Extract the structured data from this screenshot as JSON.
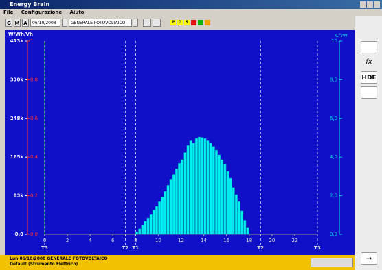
{
  "window": {
    "title": "Energy Brain",
    "menu": [
      "File",
      "Configurazione",
      "Aiuto"
    ],
    "toolbar": {
      "buttons": [
        "G",
        "M",
        "A"
      ],
      "date": "06/10/2008",
      "selection": "GENERALE FOTOVOLTAICO",
      "keys": [
        "P",
        "G",
        "S"
      ]
    },
    "side": [
      "fx",
      "HDE"
    ],
    "status": [
      "Lun 06/10/2008 GENERALE FOTOVOLTAICO",
      "Default (Strumento Elettrico)"
    ]
  },
  "chart_data": {
    "type": "bar",
    "color": "#00f0f0",
    "y_label": "W/Wh/Vh",
    "y3_label": "C°/W",
    "x": [
      8,
      8.25,
      8.5,
      8.75,
      9,
      9.25,
      9.5,
      9.75,
      10,
      10.25,
      10.5,
      10.75,
      11,
      11.25,
      11.5,
      11.75,
      12,
      12.25,
      12.5,
      12.75,
      13,
      13.25,
      13.5,
      13.75,
      14,
      14.25,
      14.5,
      14.75,
      15,
      15.25,
      15.5,
      15.75,
      16,
      16.25,
      16.5,
      16.75,
      17,
      17.25,
      17.5,
      17.75
    ],
    "values": [
      5000,
      12000,
      20000,
      28000,
      35000,
      42000,
      52000,
      60000,
      70000,
      80000,
      92000,
      105000,
      118000,
      128000,
      140000,
      152000,
      160000,
      175000,
      190000,
      200000,
      195000,
      205000,
      208000,
      207000,
      205000,
      200000,
      195000,
      188000,
      180000,
      170000,
      160000,
      150000,
      135000,
      120000,
      100000,
      85000,
      70000,
      50000,
      30000,
      15000
    ],
    "xlim": [
      0,
      24
    ],
    "xticks": [
      0,
      2,
      4,
      6,
      8,
      10,
      12,
      14,
      16,
      18,
      20,
      22
    ],
    "ylim": [
      0,
      413000
    ],
    "yticks": [
      {
        "value": 0,
        "label": "0,0"
      },
      {
        "value": 82600,
        "label": "83k"
      },
      {
        "value": 165200,
        "label": "165k"
      },
      {
        "value": 247800,
        "label": "248k"
      },
      {
        "value": 330400,
        "label": "330k"
      },
      {
        "value": 413000,
        "label": "413k"
      }
    ],
    "y2lim": [
      0,
      1
    ],
    "y2ticks": [
      {
        "value": 0,
        "label": "0,0"
      },
      {
        "value": 0.2,
        "label": "0,2"
      },
      {
        "value": 0.4,
        "label": "0,4"
      },
      {
        "value": 0.6,
        "label": "0,6"
      },
      {
        "value": 0.8,
        "label": "0,8"
      },
      1
    ],
    "y3lim": [
      0,
      10
    ],
    "y3ticks": [
      {
        "value": 0,
        "label": "0,0"
      },
      {
        "value": 2,
        "label": "2,0"
      },
      {
        "value": 4,
        "label": "4,0"
      },
      {
        "value": 6,
        "label": "6,0"
      },
      {
        "value": 8,
        "label": "8,0"
      },
      10
    ],
    "annotations": [
      {
        "x": 0,
        "label": "T3"
      },
      {
        "x": 7.1,
        "label": "T2"
      },
      {
        "x": 8,
        "label": "T1"
      },
      {
        "x": 19,
        "label": "T2"
      },
      {
        "x": 24,
        "label": "T3"
      }
    ]
  }
}
